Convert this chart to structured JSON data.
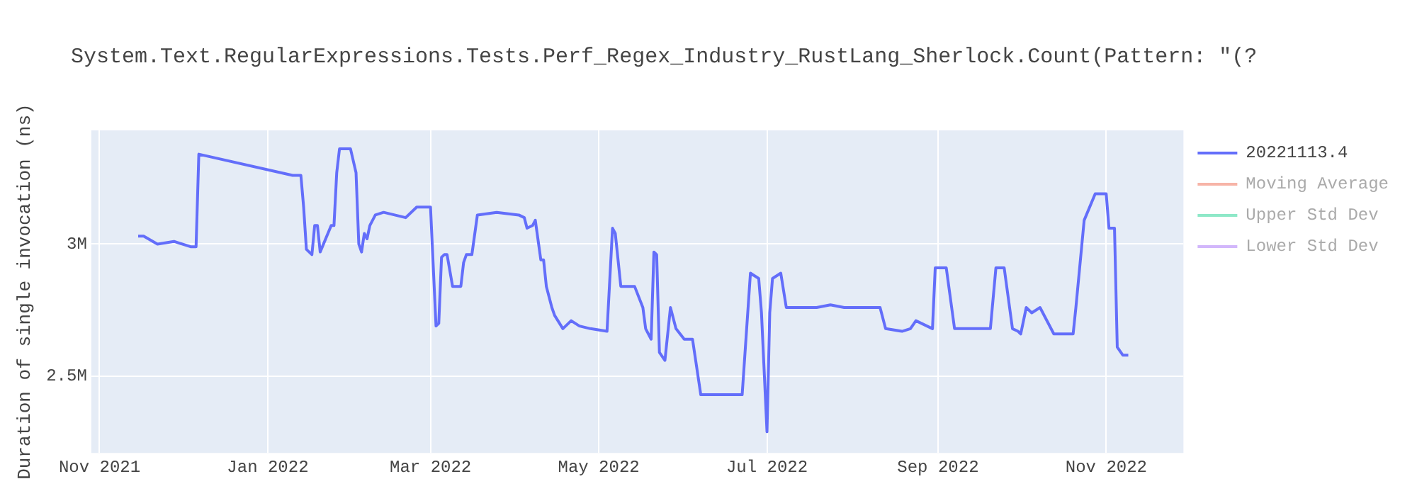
{
  "chart_data": {
    "type": "line",
    "title": "System.Text.RegularExpressions.Tests.Perf_Regex_Industry_RustLang_Sherlock.Count(Pattern: \"(?",
    "ylabel": "Duration of single invocation (ns)",
    "xlim": [
      "2021-10-29",
      "2022-11-29"
    ],
    "xticks": [
      {
        "value": "2021-11-01",
        "label": "Nov 2021"
      },
      {
        "value": "2022-01-01",
        "label": "Jan 2022"
      },
      {
        "value": "2022-03-01",
        "label": "Mar 2022"
      },
      {
        "value": "2022-05-01",
        "label": "May 2022"
      },
      {
        "value": "2022-07-01",
        "label": "Jul 2022"
      },
      {
        "value": "2022-09-01",
        "label": "Sep 2022"
      },
      {
        "value": "2022-11-01",
        "label": "Nov 2022"
      }
    ],
    "ylim": [
      2210000,
      3430000
    ],
    "yticks": [
      {
        "value": 2500000,
        "label": "2.5M"
      },
      {
        "value": 3000000,
        "label": "3M"
      }
    ],
    "grid": true,
    "legend": "top right",
    "marker": "none",
    "line_style": "solid",
    "series": [
      {
        "name": "20221113.4",
        "color": "#636efa",
        "x": [
          "2021-11-15",
          "2021-11-17",
          "2021-11-22",
          "2021-11-28",
          "2021-12-04",
          "2021-12-06",
          "2021-12-07",
          "2022-01-10",
          "2022-01-13",
          "2022-01-14",
          "2022-01-15",
          "2022-01-17",
          "2022-01-18",
          "2022-01-19",
          "2022-01-20",
          "2022-01-24",
          "2022-01-25",
          "2022-01-26",
          "2022-01-27",
          "2022-01-31",
          "2022-02-02",
          "2022-02-03",
          "2022-02-04",
          "2022-02-05",
          "2022-02-06",
          "2022-02-07",
          "2022-02-09",
          "2022-02-12",
          "2022-02-16",
          "2022-02-20",
          "2022-02-24",
          "2022-02-26",
          "2022-03-01",
          "2022-03-03",
          "2022-03-04",
          "2022-03-05",
          "2022-03-06",
          "2022-03-07",
          "2022-03-09",
          "2022-03-12",
          "2022-03-13",
          "2022-03-14",
          "2022-03-16",
          "2022-03-18",
          "2022-03-25",
          "2022-04-02",
          "2022-04-04",
          "2022-04-05",
          "2022-04-07",
          "2022-04-08",
          "2022-04-10",
          "2022-04-11",
          "2022-04-12",
          "2022-04-14",
          "2022-04-15",
          "2022-04-18",
          "2022-04-21",
          "2022-04-24",
          "2022-04-28",
          "2022-05-04",
          "2022-05-06",
          "2022-05-07",
          "2022-05-09",
          "2022-05-14",
          "2022-05-17",
          "2022-05-18",
          "2022-05-20",
          "2022-05-21",
          "2022-05-22",
          "2022-05-23",
          "2022-05-25",
          "2022-05-27",
          "2022-05-29",
          "2022-06-01",
          "2022-06-04",
          "2022-06-07",
          "2022-06-17",
          "2022-06-22",
          "2022-06-25",
          "2022-06-28",
          "2022-06-29",
          "2022-07-01",
          "2022-07-02",
          "2022-07-03",
          "2022-07-06",
          "2022-07-08",
          "2022-07-16",
          "2022-07-19",
          "2022-07-24",
          "2022-07-29",
          "2022-08-06",
          "2022-08-11",
          "2022-08-13",
          "2022-08-19",
          "2022-08-22",
          "2022-08-24",
          "2022-08-30",
          "2022-08-31",
          "2022-09-04",
          "2022-09-07",
          "2022-09-14",
          "2022-09-20",
          "2022-09-22",
          "2022-09-25",
          "2022-09-28",
          "2022-09-30",
          "2022-10-01",
          "2022-10-03",
          "2022-10-05",
          "2022-10-08",
          "2022-10-13",
          "2022-10-20",
          "2022-10-21",
          "2022-10-24",
          "2022-10-28",
          "2022-11-01",
          "2022-11-02",
          "2022-11-04",
          "2022-11-05",
          "2022-11-07",
          "2022-11-09"
        ],
        "values": [
          3030000,
          3030000,
          3000000,
          3010000,
          2990000,
          2990000,
          3340000,
          3260000,
          3260000,
          3140000,
          2980000,
          2960000,
          3070000,
          3070000,
          2970000,
          3070000,
          3070000,
          3270000,
          3360000,
          3360000,
          3270000,
          3000000,
          2970000,
          3040000,
          3020000,
          3070000,
          3110000,
          3120000,
          3110000,
          3100000,
          3140000,
          3140000,
          3140000,
          2690000,
          2700000,
          2950000,
          2960000,
          2960000,
          2840000,
          2840000,
          2930000,
          2960000,
          2960000,
          3110000,
          3120000,
          3110000,
          3100000,
          3060000,
          3070000,
          3090000,
          2940000,
          2940000,
          2840000,
          2760000,
          2730000,
          2680000,
          2710000,
          2690000,
          2680000,
          2670000,
          3060000,
          3040000,
          2840000,
          2840000,
          2760000,
          2680000,
          2640000,
          2970000,
          2960000,
          2590000,
          2560000,
          2760000,
          2680000,
          2640000,
          2640000,
          2430000,
          2430000,
          2430000,
          2890000,
          2870000,
          2740000,
          2290000,
          2740000,
          2870000,
          2890000,
          2760000,
          2760000,
          2760000,
          2770000,
          2760000,
          2760000,
          2760000,
          2680000,
          2670000,
          2680000,
          2710000,
          2680000,
          2910000,
          2910000,
          2680000,
          2680000,
          2680000,
          2910000,
          2910000,
          2680000,
          2670000,
          2660000,
          2760000,
          2740000,
          2760000,
          2660000,
          2660000,
          2760000,
          3090000,
          3190000,
          3190000,
          3060000,
          3060000,
          2610000,
          2580000,
          2580000
        ]
      },
      {
        "name": "Moving Average",
        "color": "#f7b4a7"
      },
      {
        "name": "Upper Std Dev",
        "color": "#8ee8c8"
      },
      {
        "name": "Lower Std Dev",
        "color": "#d2b7fb"
      }
    ]
  }
}
